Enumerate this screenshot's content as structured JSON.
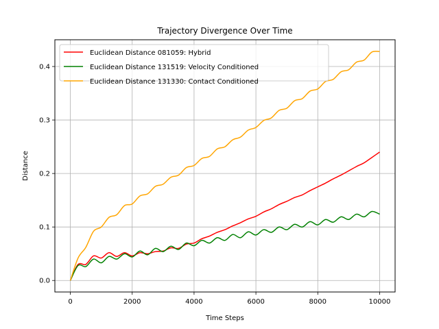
{
  "chart_data": {
    "type": "line",
    "title": "Trajectory Divergence Over Time",
    "xlabel": "Time Steps",
    "ylabel": "Distance",
    "xlim": [
      -500,
      10500
    ],
    "ylim": [
      -0.0215,
      0.45
    ],
    "xticks": [
      0,
      2000,
      4000,
      6000,
      8000,
      10000
    ],
    "xtick_labels": [
      "0",
      "2000",
      "4000",
      "6000",
      "8000",
      "10000"
    ],
    "yticks": [
      0.0,
      0.1,
      0.2,
      0.3,
      0.4
    ],
    "ytick_labels": [
      "0.0",
      "0.1",
      "0.2",
      "0.3",
      "0.4"
    ],
    "grid": true,
    "legend_position": "top-left",
    "series": [
      {
        "name": "Euclidean Distance 081059: Hybrid",
        "color": "#ff0000",
        "x": [
          0,
          250,
          500,
          750,
          1000,
          1250,
          1500,
          1750,
          2000,
          2250,
          2500,
          2750,
          3000,
          3250,
          3500,
          3750,
          4000,
          4250,
          4500,
          4750,
          5000,
          5250,
          5500,
          5750,
          6000,
          6250,
          6500,
          6750,
          7000,
          7250,
          7500,
          7750,
          8000,
          8250,
          8500,
          8750,
          9000,
          9250,
          9500,
          9750,
          10000
        ],
        "y": [
          0.0,
          0.03,
          0.03,
          0.046,
          0.042,
          0.052,
          0.045,
          0.052,
          0.046,
          0.052,
          0.05,
          0.054,
          0.055,
          0.061,
          0.06,
          0.068,
          0.07,
          0.078,
          0.083,
          0.09,
          0.095,
          0.102,
          0.108,
          0.115,
          0.12,
          0.128,
          0.134,
          0.142,
          0.148,
          0.155,
          0.16,
          0.168,
          0.175,
          0.182,
          0.19,
          0.197,
          0.205,
          0.213,
          0.22,
          0.23,
          0.24
        ]
      },
      {
        "name": "Euclidean Distance 131519: Velocity Conditioned",
        "color": "#008000",
        "x": [
          0,
          250,
          500,
          750,
          1000,
          1250,
          1500,
          1750,
          2000,
          2250,
          2500,
          2750,
          3000,
          3250,
          3500,
          3750,
          4000,
          4250,
          4500,
          4750,
          5000,
          5250,
          5500,
          5750,
          6000,
          6250,
          6500,
          6750,
          7000,
          7250,
          7500,
          7750,
          8000,
          8250,
          8500,
          8750,
          9000,
          9250,
          9500,
          9750,
          10000
        ],
        "y": [
          0.0,
          0.028,
          0.026,
          0.04,
          0.033,
          0.045,
          0.04,
          0.05,
          0.044,
          0.055,
          0.048,
          0.06,
          0.054,
          0.064,
          0.058,
          0.07,
          0.065,
          0.075,
          0.07,
          0.08,
          0.075,
          0.086,
          0.08,
          0.091,
          0.085,
          0.095,
          0.09,
          0.1,
          0.095,
          0.105,
          0.1,
          0.11,
          0.104,
          0.114,
          0.109,
          0.119,
          0.114,
          0.124,
          0.119,
          0.129,
          0.124
        ]
      },
      {
        "name": "Euclidean Distance 131330: Contact Conditioned",
        "color": "#ffa500",
        "x": [
          0,
          250,
          500,
          750,
          1000,
          1250,
          1500,
          1750,
          2000,
          2250,
          2500,
          2750,
          3000,
          3250,
          3500,
          3750,
          4000,
          4250,
          4500,
          4750,
          5000,
          5250,
          5500,
          5750,
          6000,
          6250,
          6500,
          6750,
          7000,
          7250,
          7500,
          7750,
          8000,
          8250,
          8500,
          8750,
          9000,
          9250,
          9500,
          9750,
          10000
        ],
        "y": [
          0.0,
          0.042,
          0.062,
          0.092,
          0.1,
          0.118,
          0.123,
          0.14,
          0.143,
          0.158,
          0.162,
          0.176,
          0.18,
          0.193,
          0.197,
          0.211,
          0.215,
          0.228,
          0.232,
          0.246,
          0.25,
          0.263,
          0.268,
          0.281,
          0.286,
          0.299,
          0.304,
          0.318,
          0.322,
          0.336,
          0.34,
          0.354,
          0.358,
          0.372,
          0.376,
          0.39,
          0.394,
          0.408,
          0.412,
          0.427,
          0.428
        ]
      }
    ]
  }
}
